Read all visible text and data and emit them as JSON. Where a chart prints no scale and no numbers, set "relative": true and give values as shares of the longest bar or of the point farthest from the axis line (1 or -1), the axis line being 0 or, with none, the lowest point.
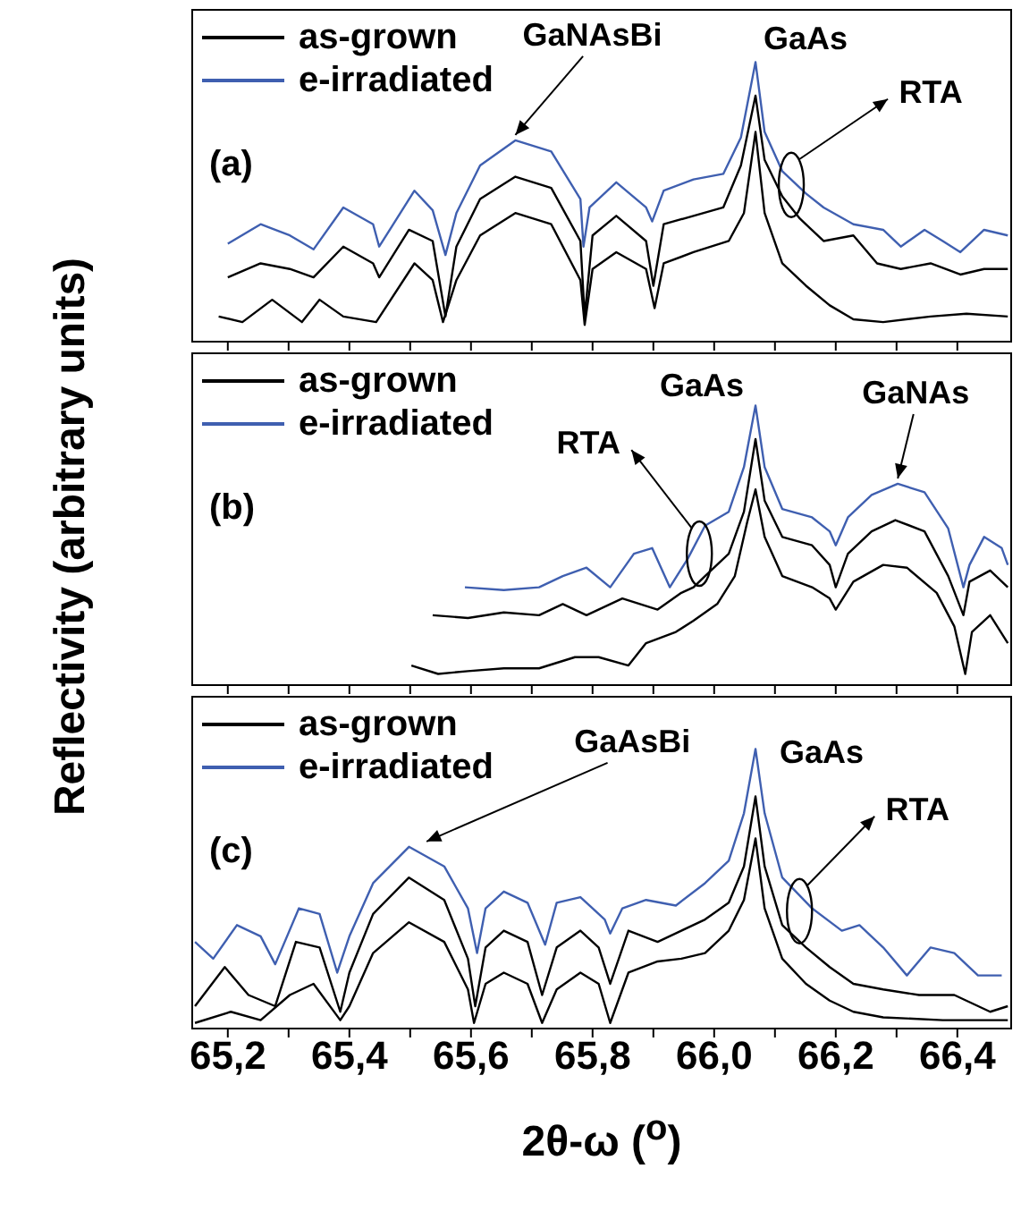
{
  "chart_data": [
    {
      "type": "line",
      "relative": true,
      "legend": "top left",
      "tick_labels": false,
      "xlim": [
        65.14,
        66.49
      ],
      "xticks": [
        65.2,
        65.3,
        65.4,
        65.5,
        65.6,
        65.7,
        65.8,
        65.9,
        66.0,
        66.1,
        66.2,
        66.3,
        66.4
      ],
      "annotations": [
        "(a)",
        {
          "text": "GaNAsBi",
          "x": 65.673,
          "y": 0.72
        },
        {
          "text": "GaAs",
          "x": 66.068,
          "y": 1.0
        },
        "RTA"
      ],
      "series": [
        {
          "name": "as-grown",
          "color": "#000000",
          "x": [
            65.2,
            65.254,
            65.302,
            65.341,
            65.39,
            65.439,
            65.449,
            65.498,
            65.537,
            65.558,
            65.576,
            65.615,
            65.673,
            65.732,
            65.78,
            65.787,
            65.8,
            65.839,
            65.888,
            65.9,
            65.917,
            65.966,
            66.015,
            66.044,
            66.068,
            66.083,
            66.112,
            66.141,
            66.18,
            66.229,
            66.268,
            66.307,
            66.356,
            66.405,
            66.444,
            66.483
          ],
          "values": [
            0.23,
            0.28,
            0.26,
            0.23,
            0.34,
            0.28,
            0.23,
            0.4,
            0.36,
            0.09,
            0.34,
            0.51,
            0.59,
            0.55,
            0.36,
            0.09,
            0.38,
            0.45,
            0.36,
            0.2,
            0.42,
            0.45,
            0.48,
            0.63,
            0.88,
            0.65,
            0.52,
            0.44,
            0.36,
            0.38,
            0.28,
            0.26,
            0.28,
            0.24,
            0.26,
            0.26
          ]
        },
        {
          "name": "e-irradiated",
          "color": "#3f5fb0",
          "x": [
            65.2,
            65.254,
            65.302,
            65.341,
            65.39,
            65.439,
            65.449,
            65.507,
            65.537,
            65.558,
            65.576,
            65.615,
            65.673,
            65.732,
            65.78,
            65.785,
            65.795,
            65.839,
            65.888,
            65.898,
            65.917,
            65.966,
            66.015,
            66.044,
            66.068,
            66.083,
            66.112,
            66.151,
            66.18,
            66.229,
            66.278,
            66.307,
            66.346,
            66.376,
            66.405,
            66.444,
            66.483
          ],
          "values": [
            0.35,
            0.42,
            0.38,
            0.33,
            0.48,
            0.42,
            0.34,
            0.54,
            0.47,
            0.31,
            0.46,
            0.63,
            0.72,
            0.68,
            0.51,
            0.34,
            0.48,
            0.57,
            0.48,
            0.43,
            0.54,
            0.58,
            0.6,
            0.73,
            1.0,
            0.75,
            0.61,
            0.53,
            0.48,
            0.42,
            0.4,
            0.34,
            0.4,
            0.36,
            0.32,
            0.4,
            0.38
          ]
        },
        {
          "color": "#000000",
          "x": [
            65.185,
            65.224,
            65.273,
            65.322,
            65.351,
            65.39,
            65.444,
            65.507,
            65.537,
            65.554,
            65.576,
            65.615,
            65.673,
            65.732,
            65.78,
            65.787,
            65.8,
            65.839,
            65.888,
            65.902,
            65.917,
            65.966,
            66.024,
            66.049,
            66.068,
            66.083,
            66.112,
            66.151,
            66.19,
            66.229,
            66.278,
            66.356,
            66.415,
            66.483
          ],
          "values": [
            0.09,
            0.07,
            0.15,
            0.07,
            0.15,
            0.09,
            0.07,
            0.28,
            0.22,
            0.07,
            0.22,
            0.38,
            0.46,
            0.42,
            0.22,
            0.06,
            0.26,
            0.32,
            0.26,
            0.12,
            0.28,
            0.32,
            0.36,
            0.46,
            0.75,
            0.46,
            0.28,
            0.2,
            0.13,
            0.08,
            0.07,
            0.09,
            0.1,
            0.09
          ]
        }
      ]
    },
    {
      "type": "line",
      "relative": true,
      "legend": "top left",
      "tick_labels": false,
      "xlim": [
        65.14,
        66.49
      ],
      "ylabel": "Reflectivity (arbitrary units)",
      "xticks": [
        65.2,
        65.3,
        65.4,
        65.5,
        65.6,
        65.7,
        65.8,
        65.9,
        66.0,
        66.1,
        66.2,
        66.3,
        66.4
      ],
      "annotations": [
        "(b)",
        {
          "text": "GaAs",
          "x": 66.068,
          "y": 1.0
        },
        {
          "text": "GaNAs",
          "x": 66.302,
          "y": 0.72
        },
        "RTA"
      ],
      "series": [
        {
          "name": "as-grown",
          "color": "#000000",
          "x": [
            65.537,
            65.595,
            65.654,
            65.712,
            65.751,
            65.79,
            65.849,
            65.907,
            65.946,
            65.966,
            65.985,
            66.024,
            66.049,
            66.068,
            66.083,
            66.112,
            66.161,
            66.19,
            66.2,
            66.22,
            66.259,
            66.298,
            66.346,
            66.385,
            66.41,
            66.42,
            66.454,
            66.483
          ],
          "values": [
            0.25,
            0.24,
            0.26,
            0.25,
            0.29,
            0.25,
            0.31,
            0.27,
            0.33,
            0.35,
            0.39,
            0.47,
            0.62,
            0.88,
            0.66,
            0.53,
            0.5,
            0.43,
            0.35,
            0.47,
            0.55,
            0.59,
            0.55,
            0.39,
            0.25,
            0.37,
            0.41,
            0.35
          ]
        },
        {
          "name": "e-irradiated",
          "color": "#3f5fb0",
          "x": [
            65.59,
            65.654,
            65.712,
            65.751,
            65.79,
            65.829,
            65.868,
            65.898,
            65.927,
            65.956,
            65.985,
            66.024,
            66.049,
            66.068,
            66.083,
            66.112,
            66.161,
            66.19,
            66.2,
            66.22,
            66.259,
            66.302,
            66.346,
            66.385,
            66.41,
            66.42,
            66.444,
            66.473,
            66.483
          ],
          "values": [
            0.35,
            0.34,
            0.35,
            0.39,
            0.42,
            0.35,
            0.47,
            0.49,
            0.35,
            0.45,
            0.57,
            0.62,
            0.78,
            1.0,
            0.78,
            0.63,
            0.6,
            0.55,
            0.5,
            0.6,
            0.68,
            0.72,
            0.69,
            0.56,
            0.35,
            0.43,
            0.53,
            0.49,
            0.43
          ]
        },
        {
          "color": "#000000",
          "x": [
            65.502,
            65.546,
            65.595,
            65.654,
            65.712,
            65.771,
            65.81,
            65.859,
            65.888,
            65.937,
            65.966,
            66.005,
            66.034,
            66.054,
            66.068,
            66.083,
            66.112,
            66.161,
            66.19,
            66.2,
            66.229,
            66.278,
            66.317,
            66.366,
            66.395,
            66.413,
            66.424,
            66.454,
            66.483
          ],
          "values": [
            0.07,
            0.04,
            0.05,
            0.06,
            0.06,
            0.1,
            0.1,
            0.07,
            0.15,
            0.19,
            0.23,
            0.29,
            0.39,
            0.58,
            0.7,
            0.53,
            0.39,
            0.35,
            0.31,
            0.27,
            0.37,
            0.43,
            0.42,
            0.33,
            0.21,
            0.04,
            0.19,
            0.25,
            0.15
          ]
        }
      ]
    },
    {
      "type": "line",
      "relative": true,
      "legend": "top left",
      "tick_labels": "x",
      "xlim": [
        65.14,
        66.49
      ],
      "xlabel": "2θ-ω ($^{o}$)",
      "xticks": [
        {
          "value": 65.2,
          "label": "65,2"
        },
        {
          "value": 65.3,
          "label": null
        },
        {
          "value": 65.4,
          "label": "65,4"
        },
        {
          "value": 65.5,
          "label": null
        },
        {
          "value": 65.6,
          "label": "65,6"
        },
        {
          "value": 65.7,
          "label": null
        },
        {
          "value": 65.8,
          "label": "65,8"
        },
        {
          "value": 65.9,
          "label": null
        },
        {
          "value": 66.0,
          "label": "66,0"
        },
        {
          "value": 66.1,
          "label": null
        },
        {
          "value": 66.2,
          "label": "66,2"
        },
        {
          "value": 66.3,
          "label": null
        },
        {
          "value": 66.4,
          "label": "66,4"
        }
      ],
      "annotations": [
        "(c)",
        {
          "text": "GaAsBi",
          "x": 65.527,
          "y": 0.65
        },
        {
          "text": "GaAs",
          "x": 66.068,
          "y": 1.0
        },
        "RTA"
      ],
      "series": [
        {
          "name": "as-grown",
          "color": "#000000",
          "x": [
            65.146,
            65.195,
            65.234,
            65.278,
            65.312,
            65.351,
            65.385,
            65.4,
            65.439,
            65.498,
            65.556,
            65.595,
            65.607,
            65.624,
            65.654,
            65.693,
            65.717,
            65.741,
            65.78,
            65.81,
            65.829,
            65.859,
            65.907,
            65.946,
            65.985,
            66.024,
            66.049,
            66.068,
            66.083,
            66.112,
            66.151,
            66.19,
            66.229,
            66.278,
            66.337,
            66.395,
            66.454,
            66.483
          ],
          "values": [
            0.08,
            0.22,
            0.12,
            0.08,
            0.31,
            0.29,
            0.06,
            0.2,
            0.41,
            0.54,
            0.46,
            0.25,
            0.08,
            0.29,
            0.35,
            0.31,
            0.12,
            0.29,
            0.35,
            0.29,
            0.16,
            0.35,
            0.31,
            0.35,
            0.39,
            0.45,
            0.58,
            0.83,
            0.58,
            0.37,
            0.29,
            0.22,
            0.16,
            0.14,
            0.12,
            0.12,
            0.06,
            0.08
          ]
        },
        {
          "name": "e-irradiated",
          "color": "#3f5fb0",
          "x": [
            65.146,
            65.176,
            65.215,
            65.254,
            65.278,
            65.317,
            65.351,
            65.38,
            65.4,
            65.439,
            65.498,
            65.556,
            65.595,
            65.61,
            65.624,
            65.654,
            65.693,
            65.722,
            65.741,
            65.78,
            65.82,
            65.829,
            65.849,
            65.888,
            65.937,
            65.985,
            66.024,
            66.049,
            66.068,
            66.083,
            66.112,
            66.161,
            66.21,
            66.239,
            66.278,
            66.317,
            66.356,
            66.395,
            66.434,
            66.473
          ],
          "values": [
            0.31,
            0.25,
            0.37,
            0.33,
            0.23,
            0.43,
            0.41,
            0.2,
            0.33,
            0.52,
            0.65,
            0.58,
            0.43,
            0.27,
            0.43,
            0.49,
            0.45,
            0.3,
            0.45,
            0.47,
            0.39,
            0.34,
            0.43,
            0.46,
            0.44,
            0.52,
            0.6,
            0.77,
            1.0,
            0.77,
            0.54,
            0.43,
            0.35,
            0.37,
            0.29,
            0.19,
            0.29,
            0.27,
            0.19,
            0.19
          ]
        },
        {
          "color": "#000000",
          "x": [
            65.146,
            65.205,
            65.254,
            65.302,
            65.341,
            65.385,
            65.4,
            65.439,
            65.498,
            65.556,
            65.595,
            65.605,
            65.624,
            65.654,
            65.693,
            65.717,
            65.741,
            65.78,
            65.81,
            65.829,
            65.859,
            65.907,
            65.946,
            65.985,
            66.024,
            66.049,
            66.068,
            66.083,
            66.112,
            66.151,
            66.19,
            66.229,
            66.278,
            66.376,
            66.483
          ],
          "values": [
            0.02,
            0.06,
            0.03,
            0.12,
            0.16,
            0.03,
            0.08,
            0.27,
            0.38,
            0.31,
            0.14,
            0.02,
            0.16,
            0.2,
            0.16,
            0.02,
            0.14,
            0.2,
            0.16,
            0.02,
            0.2,
            0.24,
            0.25,
            0.27,
            0.35,
            0.46,
            0.68,
            0.43,
            0.25,
            0.16,
            0.1,
            0.06,
            0.04,
            0.03,
            0.03
          ]
        }
      ]
    }
  ]
}
